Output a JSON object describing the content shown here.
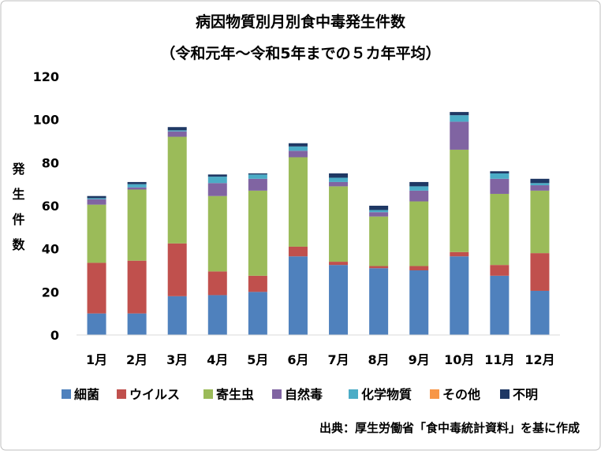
{
  "chart_data": {
    "type": "stacked_bar",
    "title": "病因物質別月別食中毒発生件数",
    "subtitle": "（令和元年～令和5年までの５カ年平均）",
    "y_label": "発生件数",
    "source": "出典：厚生労働省「食中毒統計資料」を基に作成",
    "categories": [
      "1月",
      "2月",
      "3月",
      "4月",
      "5月",
      "6月",
      "7月",
      "8月",
      "9月",
      "10月",
      "11月",
      "12月"
    ],
    "series": [
      {
        "name": "細菌",
        "color": "#4f81bd",
        "values": [
          10,
          10,
          18,
          18.5,
          20,
          36.5,
          32.5,
          31,
          30,
          36.5,
          27.5,
          20.5
        ]
      },
      {
        "name": "ウイルス",
        "color": "#c0504d",
        "values": [
          23.5,
          24.5,
          24.5,
          11,
          7.5,
          4.5,
          1.5,
          1,
          2,
          2,
          5,
          17.5
        ]
      },
      {
        "name": "寄生虫",
        "color": "#9bbb59",
        "values": [
          27,
          33,
          49.5,
          35,
          39.5,
          41.5,
          35,
          23,
          30,
          47.5,
          33,
          29
        ]
      },
      {
        "name": "自然毒",
        "color": "#8064a2",
        "values": [
          2.5,
          1,
          2.5,
          6,
          5.5,
          3,
          2,
          2,
          5,
          13,
          7,
          2.5
        ]
      },
      {
        "name": "化学物質",
        "color": "#4bacc6",
        "values": [
          0.5,
          1.5,
          0.5,
          3,
          2,
          2,
          2,
          1,
          2,
          3,
          2.5,
          1
        ]
      },
      {
        "name": "その他",
        "color": "#f79646",
        "values": [
          0,
          0,
          0,
          0,
          0,
          0,
          0,
          0,
          0,
          0,
          0,
          0
        ]
      },
      {
        "name": "不明",
        "color": "#1f3864",
        "values": [
          1,
          1,
          1.5,
          1,
          0.5,
          1.5,
          2,
          2,
          2,
          1.5,
          1,
          2
        ]
      }
    ],
    "ylim": [
      0,
      120
    ],
    "yticks": [
      0,
      20,
      40,
      60,
      80,
      100,
      120
    ],
    "grid": false
  }
}
